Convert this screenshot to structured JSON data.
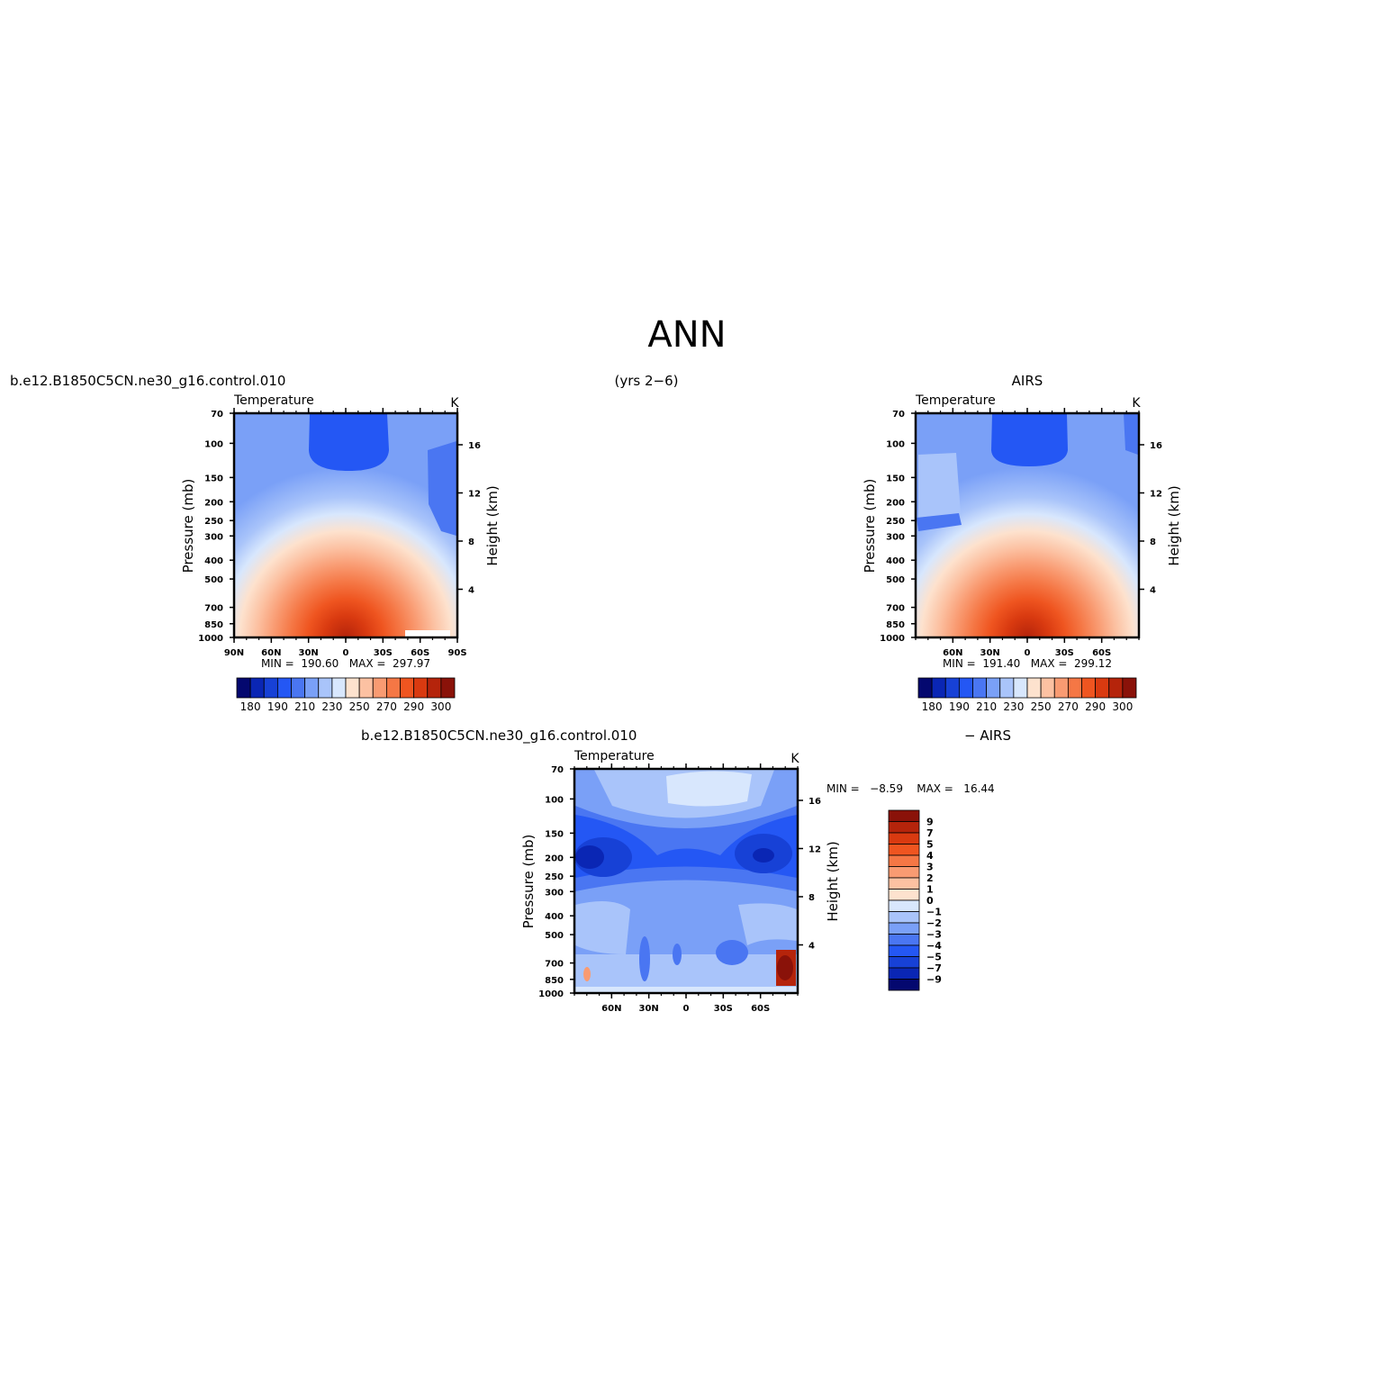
{
  "page": {
    "title": "ANN",
    "left_header": "b.e12.B1850C5CN.ne30_g16.control.010",
    "center_header": "(yrs 2−6)",
    "right_header": "AIRS",
    "bottom_header_left": "b.e12.B1850C5CN.ne30_g16.control.010",
    "bottom_header_right": "− AIRS"
  },
  "chart_data": [
    {
      "type": "heatmap",
      "id": "model",
      "title": "Temperature",
      "units": "K",
      "ylabel": "Pressure (mb)",
      "ylabel_right": "Height (km)",
      "x_ticks": [
        "90N",
        "60N",
        "30N",
        "0",
        "30S",
        "60S",
        "90S"
      ],
      "x_range": [
        90,
        -90
      ],
      "y_ticks": [
        "70",
        "100",
        "150",
        "200",
        "250",
        "300",
        "400",
        "500",
        "700",
        "850",
        "1000"
      ],
      "y_ticks_right": [
        "16",
        "12",
        "8",
        "4"
      ],
      "y_range": [
        70,
        1000
      ],
      "y_scale": "log",
      "stats": "MIN =  190.60   MAX =  297.97",
      "min": 190.6,
      "max": 297.97,
      "colorbar_labels": [
        "180",
        "190",
        "210",
        "230",
        "250",
        "270",
        "290",
        "300"
      ],
      "colorbar_colors": [
        "#04086f",
        "#0a26b4",
        "#1741d6",
        "#2457f4",
        "#4a76f2",
        "#7aa0f7",
        "#a9c4fa",
        "#d8e7fd",
        "#fde2ce",
        "#fcc1a2",
        "#f99b72",
        "#f57745",
        "#ef5520",
        "#d93a10",
        "#b5240b",
        "#8a1209"
      ]
    },
    {
      "type": "heatmap",
      "id": "obs",
      "title": "Temperature",
      "units": "K",
      "ylabel": "Pressure (mb)",
      "ylabel_right": "Height (km)",
      "x_ticks": [
        "60N",
        "30N",
        "0",
        "30S",
        "60S"
      ],
      "x_range": [
        90,
        -90
      ],
      "y_ticks": [
        "70",
        "100",
        "150",
        "200",
        "250",
        "300",
        "400",
        "500",
        "700",
        "850",
        "1000"
      ],
      "y_ticks_right": [
        "16",
        "12",
        "8",
        "4"
      ],
      "y_range": [
        70,
        1000
      ],
      "y_scale": "log",
      "stats": "MIN =  191.40   MAX =  299.12",
      "min": 191.4,
      "max": 299.12,
      "colorbar_labels": [
        "180",
        "190",
        "210",
        "230",
        "250",
        "270",
        "290",
        "300"
      ],
      "colorbar_colors": [
        "#04086f",
        "#0a26b4",
        "#1741d6",
        "#2457f4",
        "#4a76f2",
        "#7aa0f7",
        "#a9c4fa",
        "#d8e7fd",
        "#fde2ce",
        "#fcc1a2",
        "#f99b72",
        "#f57745",
        "#ef5520",
        "#d93a10",
        "#b5240b",
        "#8a1209"
      ]
    },
    {
      "type": "heatmap",
      "id": "diff",
      "title": "Temperature",
      "units": "K",
      "ylabel": "Pressure (mb)",
      "ylabel_right": "Height (km)",
      "x_ticks": [
        "60N",
        "30N",
        "0",
        "30S",
        "60S"
      ],
      "x_range": [
        90,
        -90
      ],
      "y_ticks": [
        "70",
        "100",
        "150",
        "200",
        "250",
        "300",
        "400",
        "500",
        "700",
        "850",
        "1000"
      ],
      "y_ticks_right": [
        "16",
        "12",
        "8",
        "4"
      ],
      "y_range": [
        70,
        1000
      ],
      "y_scale": "log",
      "stats": "MIN =   −8.59    MAX =   16.44",
      "min": -8.59,
      "max": 16.44,
      "colorbar_labels": [
        "9",
        "7",
        "5",
        "4",
        "3",
        "2",
        "1",
        "0",
        "−1",
        "−2",
        "−3",
        "−4",
        "−5",
        "−7",
        "−9"
      ],
      "colorbar_colors": [
        "#8a1209",
        "#b5240b",
        "#d93a10",
        "#ef5520",
        "#f57745",
        "#f99b72",
        "#fcc1a2",
        "#fde2ce",
        "#d8e7fd",
        "#a9c4fa",
        "#7aa0f7",
        "#4a76f2",
        "#2457f4",
        "#1741d6",
        "#0a26b4",
        "#04086f"
      ]
    }
  ]
}
